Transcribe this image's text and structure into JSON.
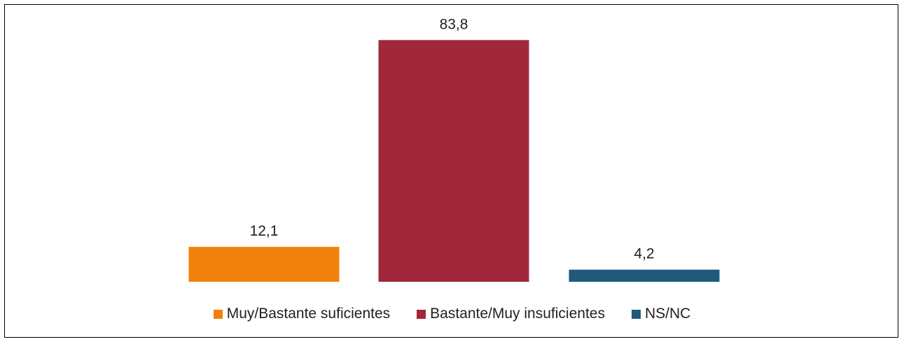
{
  "chart_data": {
    "type": "bar",
    "categories": [
      "Muy/Bastante suficientes",
      "Bastante/Muy insuficientes",
      "NS/NC"
    ],
    "values": [
      12.1,
      83.8,
      4.2
    ],
    "value_labels": [
      "12,1",
      "83,8",
      "4,2"
    ],
    "colors": [
      "#F0820C",
      "#A0283A",
      "#1F5A7D"
    ],
    "ylim": [
      0,
      100
    ],
    "grid": false,
    "legend_position": "bottom"
  },
  "legend": {
    "items": [
      {
        "label": "Muy/Bastante suficientes",
        "color": "#F0820C"
      },
      {
        "label": "Bastante/Muy insuficientes",
        "color": "#A0283A"
      },
      {
        "label": "NS/NC",
        "color": "#1F5A7D"
      }
    ]
  }
}
